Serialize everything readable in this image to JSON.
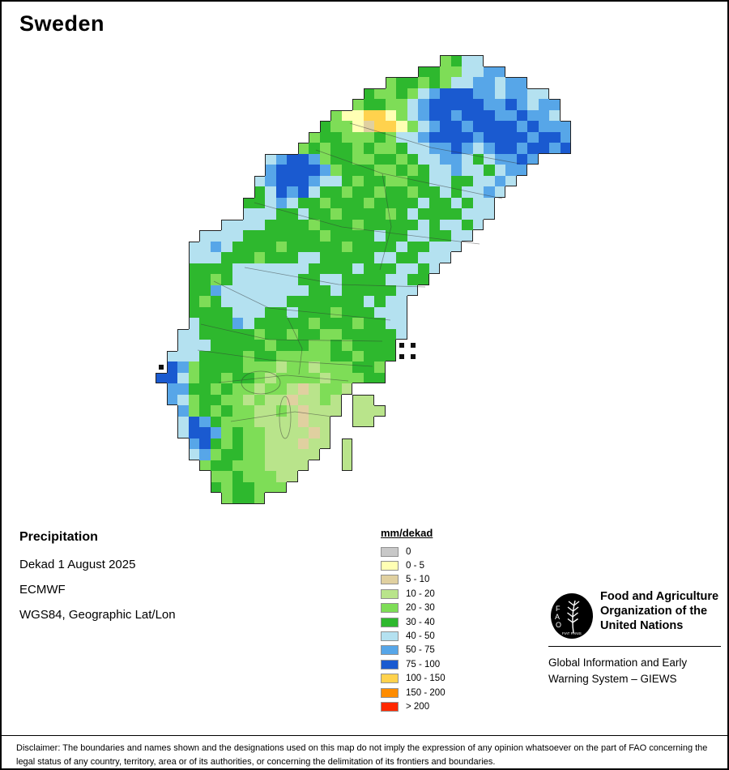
{
  "title": "Sweden",
  "meta": {
    "product": "Precipitation",
    "dekad": "Dekad 1 August 2025",
    "source": "ECMWF",
    "projection": "WGS84, Geographic Lat/Lon"
  },
  "legend": {
    "title": "mm/dekad",
    "entries": [
      {
        "label": "0",
        "color": "#c8c8c8"
      },
      {
        "label": "0 - 5",
        "color": "#ffffb4"
      },
      {
        "label": "5 - 10",
        "color": "#e0d0a0"
      },
      {
        "label": "10 - 20",
        "color": "#b9e48b"
      },
      {
        "label": "20 - 30",
        "color": "#7edd57"
      },
      {
        "label": "30 - 40",
        "color": "#2eb82e"
      },
      {
        "label": "40 - 50",
        "color": "#b4e1f0"
      },
      {
        "label": "50 - 75",
        "color": "#57a6e8"
      },
      {
        "label": "75 - 100",
        "color": "#1a5ad0"
      },
      {
        "label": "100 - 150",
        "color": "#ffd24d"
      },
      {
        "label": "150 - 200",
        "color": "#ff8c00"
      },
      {
        "label": "> 200",
        "color": "#ff2800"
      }
    ]
  },
  "footer": {
    "logo": {
      "letters": "FAO",
      "motto": "FIAT PANIS"
    },
    "org_lines": [
      "Food and Agriculture",
      "Organization of the",
      "United Nations"
    ],
    "giews_lines": [
      "Global Information and Early",
      "Warning System – GIEWS"
    ]
  },
  "disclaimer": "Disclaimer: The boundaries and names shown and the designations used on this map do not imply the expression of any opinion whatsoever on the part of FAO concerning the legal status of any country, territory, area or of its authorities, or concerning the delimitation of its frontiers and boundaries.",
  "map_data": {
    "type": "raster-grid",
    "region": "Sweden",
    "units": "mm/dekad",
    "cell_size": 13.5,
    "origin": [
      190,
      66
    ],
    "palette": {
      "a": "#c8c8c8",
      "b": "#ffffb4",
      "c": "#e0d0a0",
      "d": "#b9e48b",
      "e": "#7edd57",
      "f": "#2eb82e",
      "g": "#b4e1f0",
      "h": "#57a6e8",
      "i": "#1a5ad0",
      "j": "#ffd24d",
      "k": "#ff8c00",
      "l": "#ff2800",
      "x": "#111111"
    },
    "rows": [
      "..........................efgg........",
      "........................ffeegghh......",
      ".....................effefegghhghh....",
      "...................feefeghiiihhghhgg..",
      "..................effeeghiiiiihhihghh.",
      "................ebbjjbeghiihiiihhihhg.",
      "...............feebcjjbeghiihiiiihihhh",
      "..............effeeefegghiiiihiiiihiih",
      ".............efeffefeefgghhihghiihiihi",
      "..........ghiiheffeeffefgghhgfghhih...",
      "..........hiiiihefffeefefgghggfghh....",
      ".........ghiiihggfeffeeffggffgghg.....",
      ".........fgihigffeffeffeffgfgghg......",
      "........ffghgffefffeffffgffgfgg.......",
      "........gggffgffeffffefgffffggg.......",
      "......ggggffffefffefffffgfggfg........",
      "....ggggfffffffeffffgffggffgg.........",
      "...gghgffffefffffeffffgffggg..........",
      "...gggfffefffggfffffggffggg...........",
      "...ffffgggggggffffgfffggfg............",
      "...ffefggggggffggffffggff.............",
      "...ffhggggggggffgfffffgg..............",
      "...fefggggggfffffffgfgg...............",
      "...ffffgggffgfffefffggg...............",
      "...gfffhgfffffefffeffgg...............",
      "..ggfffffeffeffeefffffg...............",
      "..gggfffffefffeefeffffxx..............",
      ".gggffffeffeeeeeffefffxx..............",
      "xiheffffeeedeedeeeffe.................",
      "iigeffeffedeeeedeeeff.................",
      ".hhffefeedeedcdeed....................",
      ".hgeffeededdcdded.dd..................",
      "..hefefeeddedcddd.ddd.................",
      "..gihfeeeddddcdd..dd..................",
      "..giihefeeddddcd......................",
      "...hifefeedddcdd.d....................",
      "...gheffeeddddd..d....................",
      "....effeeedddd...d....................",
      ".....eefeeedd.........................",
      ".....feffeee..........................",
      "......effe............................"
    ]
  }
}
